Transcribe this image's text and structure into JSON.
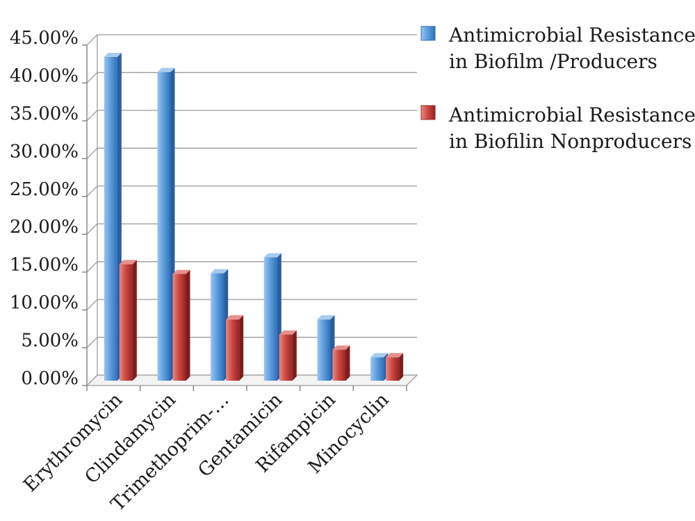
{
  "chart_data": {
    "type": "bar",
    "categories": [
      "Erythromycin",
      "Clindamycin",
      "Trimethoprim-…",
      "Gentamicin",
      "Rifampicin",
      "Minocyclin"
    ],
    "series": [
      {
        "name_lines": [
          "Antimicrobial Resistance",
          "in Biofilm /Producers"
        ],
        "values": [
          42.8,
          40.8,
          14.2,
          16.3,
          8.1,
          3.1
        ],
        "color": "#5b9bd5"
      },
      {
        "name_lines": [
          "Antimicrobial Resistance",
          "in Biofilin Nonproducers"
        ],
        "values": [
          15.4,
          14.1,
          8.1,
          6.1,
          4.1,
          3.1
        ],
        "color": "#c0392b"
      }
    ],
    "y_ticks": [
      "0.00%",
      "5.00%",
      "10.00%",
      "15.00%",
      "20.00%",
      "25.00%",
      "30.00%",
      "35.00%",
      "40.00%",
      "45.00%"
    ],
    "ylim": [
      0,
      45
    ],
    "grid": true,
    "legend_position": "top-right"
  }
}
